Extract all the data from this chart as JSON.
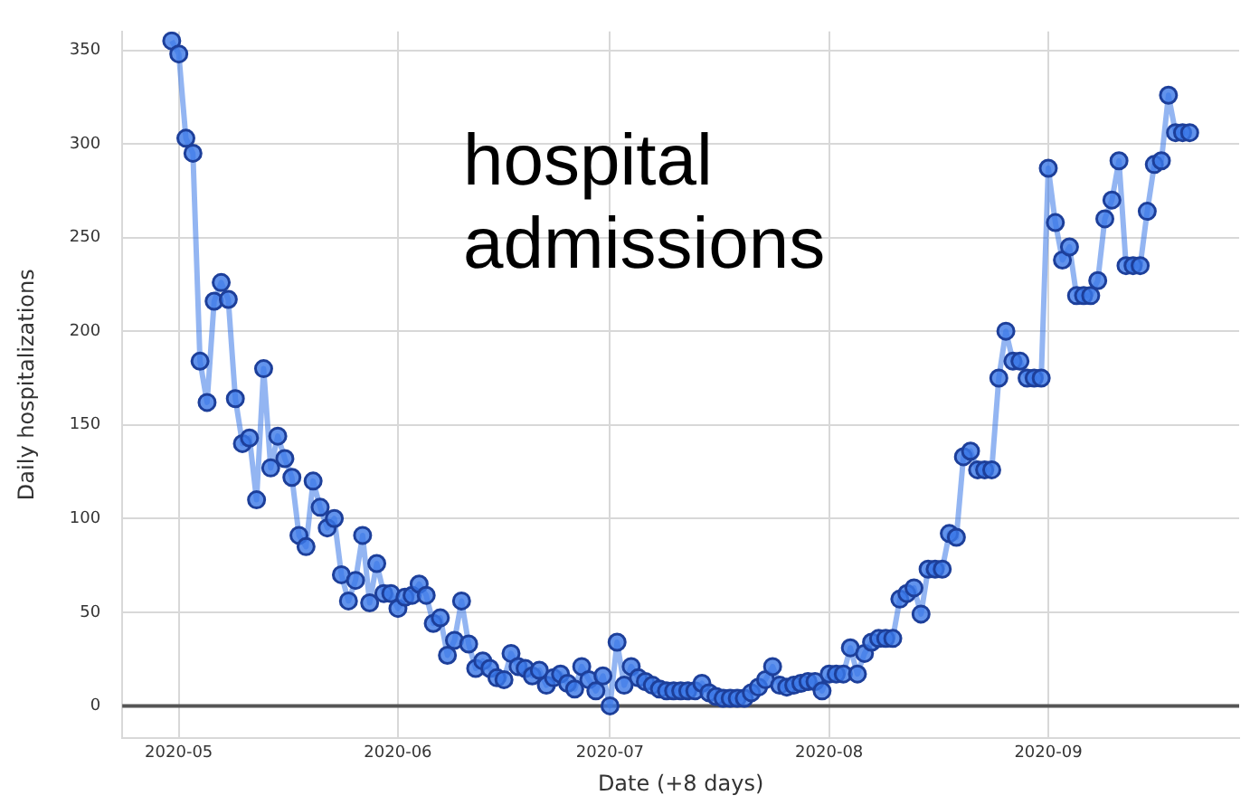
{
  "chart_data": {
    "type": "line",
    "xlabel": "Date (+8 days)",
    "ylabel": "Daily hospitalizations",
    "annotations": [
      "hospital admissions"
    ],
    "x": [
      "2020-04-30",
      "2020-05-01",
      "2020-05-02",
      "2020-05-03",
      "2020-05-04",
      "2020-05-05",
      "2020-05-06",
      "2020-05-07",
      "2020-05-08",
      "2020-05-09",
      "2020-05-10",
      "2020-05-11",
      "2020-05-12",
      "2020-05-13",
      "2020-05-14",
      "2020-05-15",
      "2020-05-16",
      "2020-05-17",
      "2020-05-18",
      "2020-05-19",
      "2020-05-20",
      "2020-05-21",
      "2020-05-22",
      "2020-05-23",
      "2020-05-24",
      "2020-05-25",
      "2020-05-26",
      "2020-05-27",
      "2020-05-28",
      "2020-05-29",
      "2020-05-30",
      "2020-05-31",
      "2020-06-01",
      "2020-06-02",
      "2020-06-03",
      "2020-06-04",
      "2020-06-05",
      "2020-06-06",
      "2020-06-07",
      "2020-06-08",
      "2020-06-09",
      "2020-06-10",
      "2020-06-11",
      "2020-06-12",
      "2020-06-13",
      "2020-06-14",
      "2020-06-15",
      "2020-06-16",
      "2020-06-17",
      "2020-06-18",
      "2020-06-19",
      "2020-06-20",
      "2020-06-21",
      "2020-06-22",
      "2020-06-23",
      "2020-06-24",
      "2020-06-25",
      "2020-06-26",
      "2020-06-27",
      "2020-06-28",
      "2020-06-29",
      "2020-06-30",
      "2020-07-01",
      "2020-07-02",
      "2020-07-03",
      "2020-07-04",
      "2020-07-05",
      "2020-07-06",
      "2020-07-07",
      "2020-07-08",
      "2020-07-09",
      "2020-07-10",
      "2020-07-11",
      "2020-07-12",
      "2020-07-13",
      "2020-07-14",
      "2020-07-15",
      "2020-07-16",
      "2020-07-17",
      "2020-07-18",
      "2020-07-19",
      "2020-07-20",
      "2020-07-21",
      "2020-07-22",
      "2020-07-23",
      "2020-07-24",
      "2020-07-25",
      "2020-07-26",
      "2020-07-27",
      "2020-07-28",
      "2020-07-29",
      "2020-07-30",
      "2020-07-31",
      "2020-08-01",
      "2020-08-02",
      "2020-08-03",
      "2020-08-04",
      "2020-08-05",
      "2020-08-06",
      "2020-08-07",
      "2020-08-08",
      "2020-08-09",
      "2020-08-10",
      "2020-08-11",
      "2020-08-12",
      "2020-08-13",
      "2020-08-14",
      "2020-08-15",
      "2020-08-16",
      "2020-08-17",
      "2020-08-18",
      "2020-08-19",
      "2020-08-20",
      "2020-08-21",
      "2020-08-22",
      "2020-08-23",
      "2020-08-24",
      "2020-08-25",
      "2020-08-26",
      "2020-08-27",
      "2020-08-28",
      "2020-08-29",
      "2020-08-30",
      "2020-08-31",
      "2020-09-01",
      "2020-09-02",
      "2020-09-03",
      "2020-09-04",
      "2020-09-05",
      "2020-09-06",
      "2020-09-07",
      "2020-09-08",
      "2020-09-09",
      "2020-09-10",
      "2020-09-11",
      "2020-09-12",
      "2020-09-13",
      "2020-09-14",
      "2020-09-15",
      "2020-09-16",
      "2020-09-17",
      "2020-09-18",
      "2020-09-19",
      "2020-09-20",
      "2020-09-21"
    ],
    "series": [
      {
        "color": "#3b78e7",
        "values": [
          355,
          348,
          303,
          295,
          184,
          162,
          216,
          226,
          217,
          164,
          140,
          143,
          110,
          180,
          127,
          144,
          132,
          122,
          91,
          85,
          120,
          106,
          95,
          100,
          70,
          56,
          67,
          91,
          55,
          76,
          60,
          60,
          52,
          58,
          59,
          65,
          59,
          44,
          47,
          27,
          35,
          56,
          33,
          20,
          24,
          20,
          15,
          14,
          28,
          21,
          20,
          16,
          19,
          11,
          15,
          17,
          12,
          9,
          21,
          14,
          8,
          16,
          0,
          34,
          11,
          21,
          15,
          13,
          11,
          9,
          8,
          8,
          8,
          8,
          8,
          12,
          7,
          5,
          4,
          4,
          4,
          4,
          7,
          10,
          14,
          21,
          11,
          10,
          11,
          12,
          13,
          13,
          8,
          17,
          17,
          17,
          31,
          17,
          28,
          34,
          36,
          36,
          36,
          57,
          60,
          63,
          49,
          73,
          73,
          73,
          92,
          90,
          133,
          136,
          126,
          126,
          126,
          175,
          200,
          184,
          184,
          175,
          175,
          175,
          287,
          258,
          238,
          245,
          219,
          219,
          219,
          227,
          260,
          270,
          291,
          235,
          235,
          235,
          264,
          289,
          291,
          326,
          306,
          306,
          306
        ]
      }
    ],
    "xlim": [
      "2020-04-23",
      "2020-09-28"
    ],
    "xticks": [
      "2020-05",
      "2020-06",
      "2020-07",
      "2020-08",
      "2020-09"
    ],
    "ylim": [
      -17,
      360
    ],
    "yticks": [
      0,
      50,
      100,
      150,
      200,
      250,
      300,
      350
    ],
    "ref_lines": [
      {
        "axis": "y",
        "value": 0,
        "color": "#555555"
      }
    ],
    "grid": true,
    "marker": "circle",
    "line_style": "solid",
    "legend": false
  }
}
